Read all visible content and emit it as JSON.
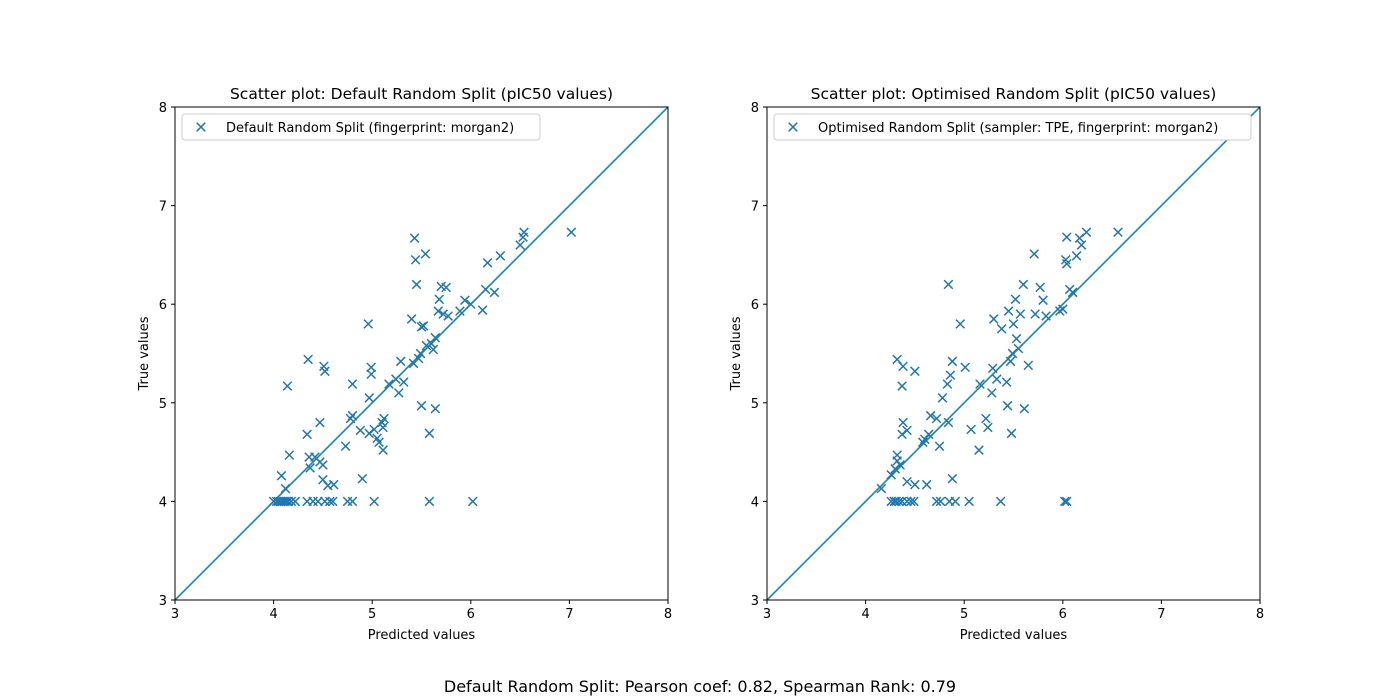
{
  "figure_caption": "Default Random Split: Pearson coef: 0.82, Spearman Rank: 0.79",
  "colors": {
    "marker": "#1f77b4",
    "diagonal": "#1a80bb",
    "axes": "#000000"
  },
  "chart_data": [
    {
      "type": "scatter",
      "title": "Scatter plot: Default Random Split (pIC50 values)",
      "xlabel": "Predicted values",
      "ylabel": "True values",
      "xlim": [
        3,
        8
      ],
      "ylim": [
        3,
        8
      ],
      "xticks": [
        "3",
        "4",
        "5",
        "6",
        "7",
        "8"
      ],
      "yticks": [
        "3",
        "4",
        "5",
        "6",
        "7",
        "8"
      ],
      "grid": false,
      "legend_position": "upper-left",
      "marker": "x",
      "reference_line": "y = x",
      "series": [
        {
          "name": "Default Random Split (fingerprint: morgan2)",
          "points": [
            [
              4.0,
              4.0
            ],
            [
              4.03,
              4.0
            ],
            [
              4.05,
              4.0
            ],
            [
              4.07,
              4.0
            ],
            [
              4.09,
              4.0
            ],
            [
              4.11,
              4.0
            ],
            [
              4.13,
              4.0
            ],
            [
              4.15,
              4.0
            ],
            [
              4.18,
              4.0
            ],
            [
              4.22,
              4.0
            ],
            [
              4.34,
              4.0
            ],
            [
              4.4,
              4.0
            ],
            [
              4.45,
              4.0
            ],
            [
              4.52,
              4.0
            ],
            [
              4.57,
              4.0
            ],
            [
              4.6,
              4.0
            ],
            [
              4.75,
              4.0
            ],
            [
              4.8,
              4.0
            ],
            [
              5.02,
              4.0
            ],
            [
              5.58,
              4.0
            ],
            [
              6.02,
              4.0
            ],
            [
              4.08,
              4.26
            ],
            [
              4.12,
              4.13
            ],
            [
              4.16,
              4.47
            ],
            [
              4.14,
              5.17
            ],
            [
              4.34,
              4.68
            ],
            [
              4.36,
              4.45
            ],
            [
              4.37,
              4.34
            ],
            [
              4.42,
              4.45
            ],
            [
              4.47,
              4.8
            ],
            [
              4.47,
              4.4
            ],
            [
              4.5,
              4.37
            ],
            [
              4.5,
              4.22
            ],
            [
              4.55,
              4.16
            ],
            [
              4.61,
              4.17
            ],
            [
              4.35,
              5.44
            ],
            [
              4.51,
              5.37
            ],
            [
              4.52,
              5.32
            ],
            [
              4.73,
              4.56
            ],
            [
              4.78,
              4.84
            ],
            [
              4.8,
              4.87
            ],
            [
              4.8,
              5.19
            ],
            [
              4.88,
              4.72
            ],
            [
              4.9,
              4.23
            ],
            [
              4.97,
              4.69
            ],
            [
              4.97,
              5.05
            ],
            [
              4.96,
              5.8
            ],
            [
              4.99,
              5.29
            ],
            [
              4.99,
              5.36
            ],
            [
              5.02,
              4.73
            ],
            [
              5.05,
              4.64
            ],
            [
              5.07,
              4.6
            ],
            [
              5.1,
              4.8
            ],
            [
              5.11,
              4.52
            ],
            [
              5.11,
              4.75
            ],
            [
              5.12,
              4.84
            ],
            [
              5.17,
              5.19
            ],
            [
              5.24,
              5.24
            ],
            [
              5.27,
              5.1
            ],
            [
              5.29,
              5.42
            ],
            [
              5.32,
              5.21
            ],
            [
              5.4,
              5.85
            ],
            [
              5.42,
              5.4
            ],
            [
              5.43,
              6.67
            ],
            [
              5.44,
              6.45
            ],
            [
              5.45,
              6.2
            ],
            [
              5.47,
              5.45
            ],
            [
              5.49,
              5.5
            ],
            [
              5.5,
              4.97
            ],
            [
              5.5,
              5.77
            ],
            [
              5.52,
              5.78
            ],
            [
              5.54,
              6.51
            ],
            [
              5.55,
              5.58
            ],
            [
              5.58,
              4.69
            ],
            [
              5.6,
              5.6
            ],
            [
              5.62,
              5.54
            ],
            [
              5.64,
              5.66
            ],
            [
              5.64,
              4.94
            ],
            [
              5.67,
              5.93
            ],
            [
              5.68,
              6.05
            ],
            [
              5.7,
              6.18
            ],
            [
              5.72,
              5.9
            ],
            [
              5.75,
              6.17
            ],
            [
              5.77,
              5.88
            ],
            [
              5.89,
              5.93
            ],
            [
              5.94,
              6.04
            ],
            [
              6.0,
              6.0
            ],
            [
              6.12,
              5.94
            ],
            [
              6.15,
              6.15
            ],
            [
              6.17,
              6.42
            ],
            [
              6.24,
              6.12
            ],
            [
              6.3,
              6.49
            ],
            [
              6.5,
              6.6
            ],
            [
              6.53,
              6.68
            ],
            [
              6.54,
              6.73
            ],
            [
              7.02,
              6.73
            ]
          ]
        }
      ]
    },
    {
      "type": "scatter",
      "title": "Scatter plot: Optimised Random Split (pIC50 values)",
      "xlabel": "Predicted values",
      "ylabel": "True values",
      "xlim": [
        3,
        8
      ],
      "ylim": [
        3,
        8
      ],
      "xticks": [
        "3",
        "4",
        "5",
        "6",
        "7",
        "8"
      ],
      "yticks": [
        "3",
        "4",
        "5",
        "6",
        "7",
        "8"
      ],
      "grid": false,
      "legend_position": "upper-left",
      "marker": "x",
      "reference_line": "y = x",
      "series": [
        {
          "name": "Optimised Random Split (sampler: TPE, fingerprint: morgan2)",
          "points": [
            [
              4.26,
              4.0
            ],
            [
              4.29,
              4.0
            ],
            [
              4.31,
              4.0
            ],
            [
              4.34,
              4.0
            ],
            [
              4.37,
              4.0
            ],
            [
              4.42,
              4.0
            ],
            [
              4.46,
              4.0
            ],
            [
              4.49,
              4.0
            ],
            [
              4.72,
              4.0
            ],
            [
              4.76,
              4.0
            ],
            [
              4.85,
              4.0
            ],
            [
              4.91,
              4.0
            ],
            [
              5.05,
              4.0
            ],
            [
              5.37,
              4.0
            ],
            [
              6.04,
              4.0
            ],
            [
              6.02,
              4.0
            ],
            [
              4.16,
              4.13
            ],
            [
              4.26,
              4.27
            ],
            [
              4.3,
              4.33
            ],
            [
              4.32,
              4.41
            ],
            [
              4.32,
              4.47
            ],
            [
              4.35,
              4.37
            ],
            [
              4.37,
              4.68
            ],
            [
              4.38,
              4.8
            ],
            [
              4.42,
              4.72
            ],
            [
              4.42,
              4.2
            ],
            [
              4.5,
              4.17
            ],
            [
              4.58,
              4.6
            ],
            [
              4.62,
              4.17
            ],
            [
              4.32,
              5.44
            ],
            [
              4.37,
              5.17
            ],
            [
              4.38,
              5.37
            ],
            [
              4.5,
              5.32
            ],
            [
              4.6,
              4.63
            ],
            [
              4.64,
              4.68
            ],
            [
              4.66,
              4.87
            ],
            [
              4.72,
              4.84
            ],
            [
              4.75,
              4.56
            ],
            [
              4.78,
              5.05
            ],
            [
              4.83,
              5.19
            ],
            [
              4.84,
              4.8
            ],
            [
              4.84,
              6.2
            ],
            [
              4.86,
              5.28
            ],
            [
              4.88,
              5.42
            ],
            [
              4.88,
              4.23
            ],
            [
              4.96,
              5.8
            ],
            [
              5.01,
              5.36
            ],
            [
              5.07,
              4.73
            ],
            [
              5.15,
              4.52
            ],
            [
              5.16,
              5.19
            ],
            [
              5.22,
              4.84
            ],
            [
              5.24,
              4.75
            ],
            [
              5.28,
              5.1
            ],
            [
              5.29,
              5.35
            ],
            [
              5.3,
              5.85
            ],
            [
              5.33,
              5.24
            ],
            [
              5.38,
              5.75
            ],
            [
              5.43,
              5.21
            ],
            [
              5.44,
              4.97
            ],
            [
              5.45,
              5.93
            ],
            [
              5.47,
              5.42
            ],
            [
              5.48,
              4.69
            ],
            [
              5.49,
              5.5
            ],
            [
              5.5,
              5.8
            ],
            [
              5.52,
              6.05
            ],
            [
              5.53,
              5.65
            ],
            [
              5.55,
              5.55
            ],
            [
              5.57,
              5.9
            ],
            [
              5.6,
              6.2
            ],
            [
              5.61,
              4.94
            ],
            [
              5.65,
              5.38
            ],
            [
              5.71,
              6.51
            ],
            [
              5.72,
              5.9
            ],
            [
              5.77,
              6.17
            ],
            [
              5.8,
              6.04
            ],
            [
              5.83,
              5.88
            ],
            [
              5.97,
              5.93
            ],
            [
              6.0,
              5.95
            ],
            [
              6.03,
              6.45
            ],
            [
              6.04,
              6.41
            ],
            [
              6.04,
              6.68
            ],
            [
              6.07,
              6.15
            ],
            [
              6.1,
              6.12
            ],
            [
              6.14,
              6.49
            ],
            [
              6.17,
              6.67
            ],
            [
              6.19,
              6.6
            ],
            [
              6.24,
              6.73
            ],
            [
              6.56,
              6.73
            ]
          ]
        }
      ]
    }
  ]
}
